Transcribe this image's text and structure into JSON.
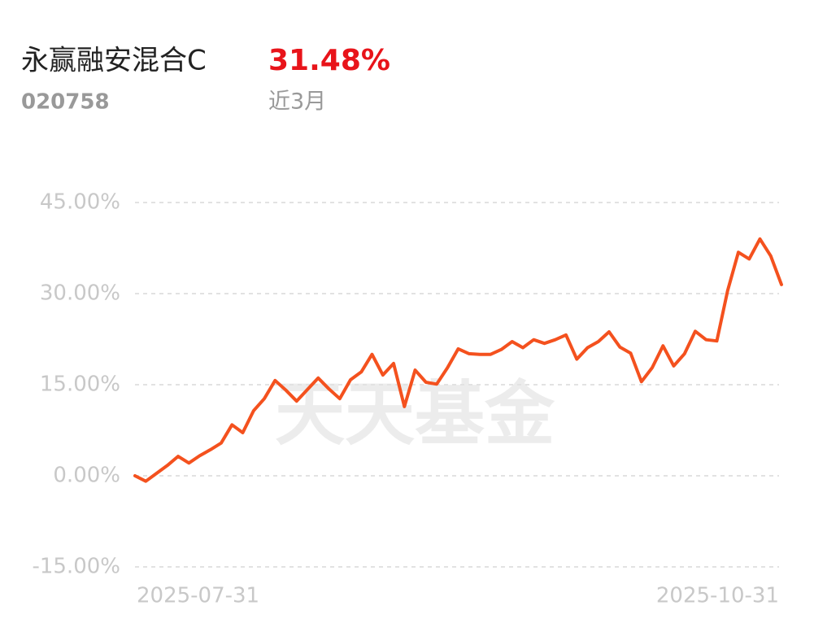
{
  "header": {
    "name": "永赢融安混合C",
    "return": "31.48%",
    "code": "020758",
    "period": "近3月"
  },
  "chart_data": {
    "type": "line",
    "watermark": "天天基金",
    "color": "#f4511e",
    "categories": [
      "2025-07-31",
      null,
      null,
      null,
      null,
      null,
      null,
      null,
      null,
      null,
      null,
      null,
      null,
      null,
      null,
      null,
      null,
      null,
      null,
      null,
      null,
      null,
      null,
      null,
      null,
      null,
      null,
      null,
      null,
      null,
      null,
      null,
      null,
      null,
      null,
      null,
      null,
      null,
      null,
      null,
      null,
      null,
      null,
      null,
      null,
      null,
      null,
      null,
      null,
      null,
      null,
      null,
      null,
      null,
      null,
      null,
      null,
      null,
      null,
      null,
      "2025-10-31"
    ],
    "values": [
      0,
      -0.9,
      0.4,
      1.7,
      3.2,
      2.1,
      3.3,
      4.3,
      5.4,
      8.4,
      7.1,
      10.7,
      12.7,
      15.7,
      14.1,
      12.3,
      14.2,
      16.1,
      14.3,
      12.7,
      15.8,
      17.1,
      20.0,
      16.6,
      18.5,
      11.4,
      17.4,
      15.4,
      15.1,
      17.8,
      20.9,
      20.1,
      20.0,
      20.0,
      20.8,
      22.1,
      21.1,
      22.4,
      21.8,
      22.4,
      23.2,
      19.2,
      21.1,
      22.1,
      23.7,
      21.2,
      20.2,
      15.5,
      17.8,
      21.4,
      18.1,
      20.1,
      23.8,
      22.4,
      22.2,
      30.5,
      36.8,
      35.7,
      39.0,
      36.2,
      31.48
    ],
    "ylim": [
      -15,
      45
    ],
    "yticks": [
      {
        "value": -15,
        "label": "-15.00%"
      },
      {
        "value": 0,
        "label": "0.00%"
      },
      {
        "value": 15,
        "label": "15.00%"
      },
      {
        "value": 30,
        "label": "30.00%"
      },
      {
        "value": 45,
        "label": "45.00%"
      }
    ],
    "grid": true
  }
}
